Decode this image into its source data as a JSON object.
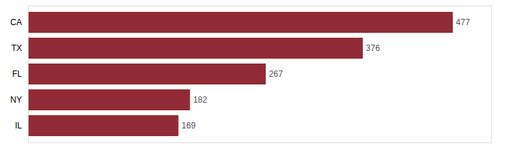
{
  "chart_data": {
    "type": "bar",
    "orientation": "horizontal",
    "categories": [
      "CA",
      "TX",
      "FL",
      "NY",
      "IL"
    ],
    "values": [
      477,
      376,
      267,
      182,
      169
    ],
    "color": "#922b35",
    "xlim": [
      0,
      520
    ],
    "grid": false,
    "data_labels": true,
    "tick_labels": "y"
  }
}
